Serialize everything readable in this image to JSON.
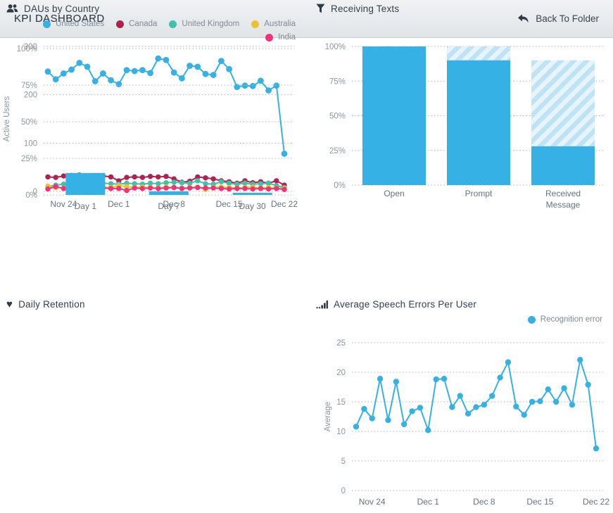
{
  "header": {
    "title": "KPI DASHBOARD",
    "back_label": "Back To Folder"
  },
  "icons": {
    "heart": "♥"
  },
  "colors": {
    "blue": "#35B1E6",
    "hatch_base": "#BEE3F5",
    "hatch_stripe": "#E7F4FB",
    "title_text": "#323F4D",
    "icon_dark": "#2E3A46"
  },
  "chart_data": [
    {
      "id": "daus",
      "type": "line",
      "title": "DAUs by Country",
      "icon": "users-icon",
      "ylabel": "Active Users",
      "ylim": [
        0,
        300
      ],
      "yticks": [
        0,
        100,
        200,
        300
      ],
      "ytick_labels": [
        "0",
        "100",
        "200",
        "300"
      ],
      "xticks": {
        "labels": [
          "Nov 24",
          "Dec 1",
          "Dec 8",
          "Dec 15",
          "Dec 22"
        ],
        "indices": [
          2,
          9,
          16,
          23,
          30
        ]
      },
      "grid": true,
      "legend_position": "top-right",
      "series": [
        {
          "name": "United States",
          "color": "#35B1E6",
          "values": [
            248,
            232,
            244,
            252,
            266,
            258,
            228,
            244,
            230,
            222,
            251,
            249,
            251,
            245,
            275,
            272,
            246,
            234,
            260,
            258,
            243,
            241,
            270,
            253,
            216,
            219,
            218,
            229,
            209,
            219,
            78
          ]
        },
        {
          "name": "Canada",
          "color": "#B1204E",
          "values": [
            30,
            29,
            32,
            33,
            34,
            29,
            28,
            32,
            30,
            22,
            29,
            30,
            29,
            31,
            30,
            31,
            26,
            19,
            21,
            30,
            28,
            26,
            22,
            20,
            17,
            22,
            18,
            20,
            17,
            22,
            13
          ]
        },
        {
          "name": "United Kingdom",
          "color": "#3EC3A6",
          "values": [
            10,
            13,
            15,
            16,
            15,
            16,
            17,
            17,
            16,
            15,
            17,
            16,
            15,
            17,
            16,
            18,
            19,
            18,
            17,
            22,
            16,
            15,
            20,
            17,
            15,
            17,
            15,
            16,
            17,
            12,
            8
          ]
        },
        {
          "name": "Australia",
          "color": "#E9C42F",
          "values": [
            11,
            8,
            7,
            8,
            6,
            9,
            8,
            9,
            8,
            12,
            10,
            8,
            9,
            8,
            7,
            9,
            8,
            7,
            8,
            9,
            4,
            8,
            9,
            8,
            7,
            8,
            9,
            7,
            8,
            7,
            6
          ]
        },
        {
          "name": "India",
          "color": "#F0317C",
          "values": [
            5,
            10,
            6,
            4,
            3,
            6,
            5,
            7,
            6,
            6,
            2,
            7,
            6,
            7,
            6,
            7,
            8,
            6,
            7,
            8,
            7,
            7,
            6,
            5,
            6,
            6,
            5,
            6,
            5,
            6,
            4
          ]
        }
      ]
    },
    {
      "id": "receiving-texts",
      "type": "funnel-bar",
      "title": "Receiving Texts",
      "icon": "funnel-icon",
      "ylim": [
        0,
        100
      ],
      "yticks": [
        0,
        25,
        50,
        75,
        100
      ],
      "ytick_labels": [
        "0%",
        "25%",
        "50%",
        "75%",
        "100%"
      ],
      "categories": [
        "Open",
        "Prompt",
        "Received\nMessage"
      ],
      "solid_values": [
        100,
        90,
        28
      ],
      "top_values": [
        100,
        100,
        90
      ],
      "bar_color": "#35B1E6",
      "hatch_base": "#BEE3F5",
      "hatch_stripe": "#E7F4FB",
      "grid": true
    },
    {
      "id": "daily-retention",
      "type": "bar",
      "title": "Daily Retention",
      "icon": "heart-icon",
      "ylim": [
        0,
        100
      ],
      "yticks": [
        0,
        25,
        50,
        75,
        100
      ],
      "ytick_labels": [
        "0%",
        "25%",
        "50%",
        "75%",
        "100%"
      ],
      "categories": [
        "Day 1",
        "Day 7",
        "Day 30"
      ],
      "values": [
        15,
        2.5,
        1.5
      ],
      "bar_color": "#35B1E6",
      "grid": true
    },
    {
      "id": "speech-errors",
      "type": "line",
      "title": "Average Speech Errors Per User",
      "icon": "signal-icon",
      "ylabel": "Average",
      "ylim": [
        0,
        25
      ],
      "yticks": [
        0,
        5,
        10,
        15,
        20,
        25
      ],
      "ytick_labels": [
        "0",
        "5",
        "10",
        "15",
        "20",
        "25"
      ],
      "xticks": {
        "labels": [
          "Nov 24",
          "Dec 1",
          "Dec 8",
          "Dec 15",
          "Dec 22"
        ],
        "indices": [
          2,
          9,
          16,
          23,
          30
        ]
      },
      "grid": true,
      "legend_position": "top-right",
      "series": [
        {
          "name": "Recognition error",
          "color": "#35B1E6",
          "values": [
            10.8,
            13.8,
            12.2,
            18.9,
            11.9,
            18.4,
            11.2,
            13.4,
            14,
            10.2,
            18.8,
            18.9,
            14.1,
            16,
            13,
            14.1,
            14.5,
            16,
            19.1,
            21.7,
            14.2,
            12.8,
            15,
            15.1,
            17.1,
            15,
            17.3,
            14.5,
            22.1,
            17.9,
            7.1
          ]
        }
      ]
    }
  ]
}
